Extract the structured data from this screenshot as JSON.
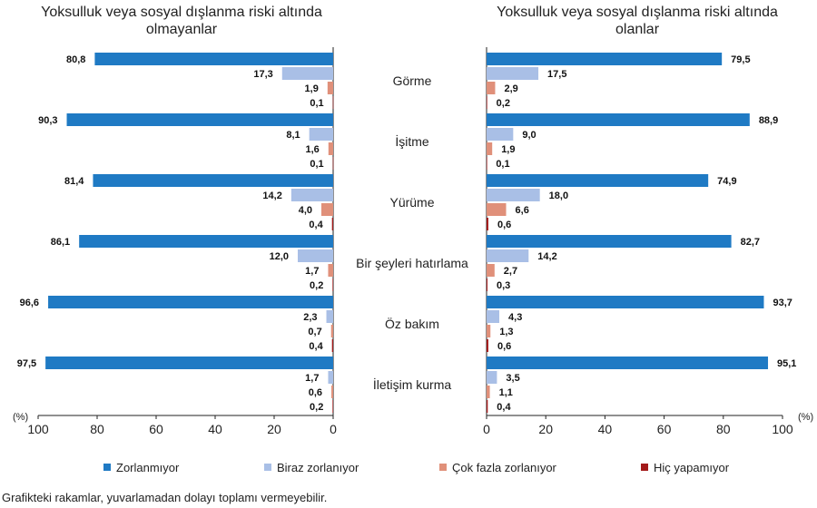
{
  "chart_data": {
    "type": "bar",
    "categories": [
      "Görme",
      "İşitme",
      "Yürüme",
      "Bir şeyleri hatırlama",
      "Öz bakım",
      "İletişim kurma"
    ],
    "series": [
      {
        "name": "Zorlanmıyor",
        "color": "#1f7ac4"
      },
      {
        "name": "Biraz zorlanıyor",
        "color": "#a9bfe6"
      },
      {
        "name": "Çok fazla zorlanıyor",
        "color": "#e0907a"
      },
      {
        "name": "Hiç yapamıyor",
        "color": "#a31a1a"
      }
    ],
    "panels": [
      {
        "title_line1": "Yoksulluk veya sosyal dışlanma riski altında",
        "title_line2": "olmayanlar",
        "values": [
          [
            "80,8",
            "17,3",
            "1,9",
            "0,1"
          ],
          [
            "90,3",
            "8,1",
            "1,6",
            "0,1"
          ],
          [
            "81,4",
            "14,2",
            "4,0",
            "0,4"
          ],
          [
            "86,1",
            "12,0",
            "1,7",
            "0,2"
          ],
          [
            "96,6",
            "2,3",
            "0,7",
            "0,4"
          ],
          [
            "97,5",
            "1,7",
            "0,6",
            "0,2"
          ]
        ],
        "xlim": [
          100,
          0
        ],
        "ticks": [
          "100",
          "80",
          "60",
          "40",
          "20",
          "0"
        ],
        "unit": "(%)"
      },
      {
        "title_line1": "Yoksulluk veya sosyal dışlanma riski altında",
        "title_line2": "olanlar",
        "values": [
          [
            "79,5",
            "17,5",
            "2,9",
            "0,2"
          ],
          [
            "88,9",
            "9,0",
            "1,9",
            "0,1"
          ],
          [
            "74,9",
            "18,0",
            "6,6",
            "0,6"
          ],
          [
            "82,7",
            "14,2",
            "2,7",
            "0,3"
          ],
          [
            "93,7",
            "4,3",
            "1,3",
            "0,6"
          ],
          [
            "95,1",
            "3,5",
            "1,1",
            "0,4"
          ]
        ],
        "xlim": [
          0,
          100
        ],
        "ticks": [
          "0",
          "20",
          "40",
          "60",
          "80",
          "100"
        ],
        "unit": "(%)"
      }
    ],
    "footnote": "Grafikteki rakamlar, yuvarlamadan dolayı toplamı vermeyebilir."
  }
}
